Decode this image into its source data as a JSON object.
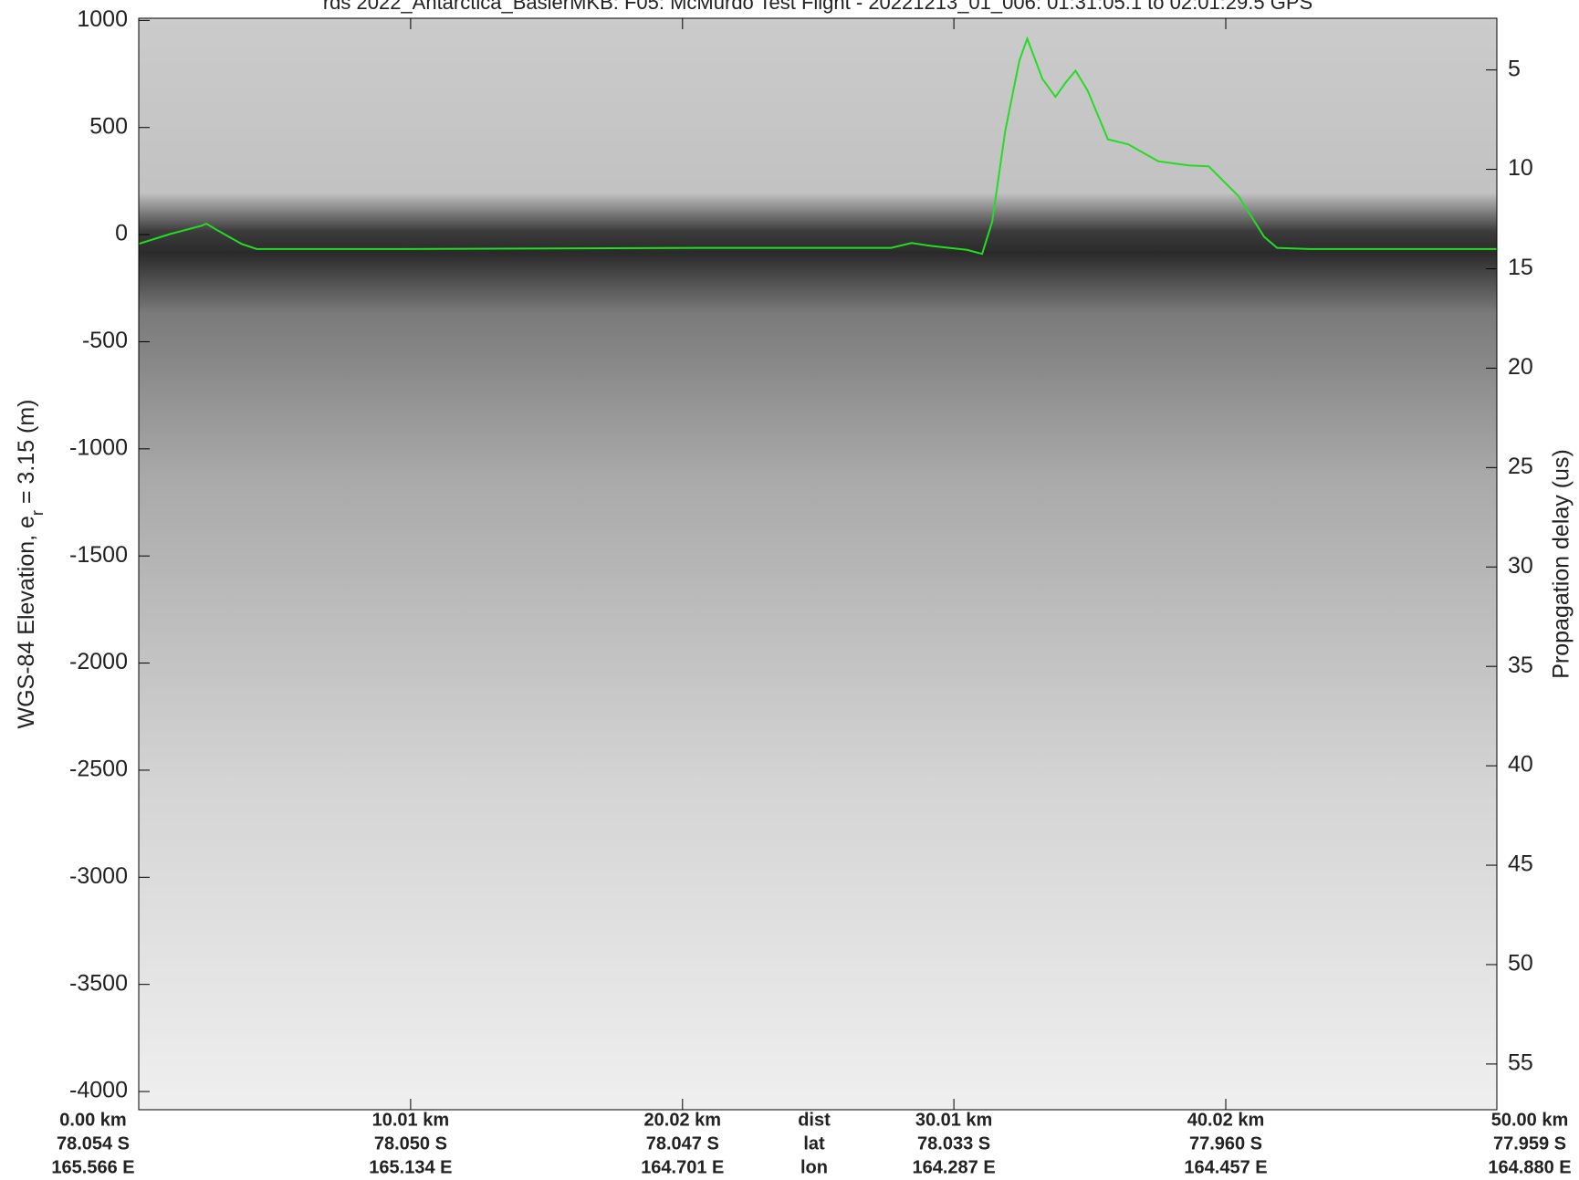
{
  "chart_data": {
    "type": "line",
    "title": "rds 2022_Antarctica_BaslerMKB: F05: McMurdo Test Flight - 20221213_01_006: 01:31:05.1 to 02:01:29.5 GPS",
    "ylabel": "WGS-84 Elevation, e",
    "ylabel_subscript": "r",
    "ylabel_suffix": " = 3.15 (m)",
    "y2label": "Propagation delay (us)",
    "xlim": [
      0,
      50
    ],
    "ylim": [
      -4085,
      1010
    ],
    "y2lim": [
      57.3,
      2.4
    ],
    "yticks": [
      1000,
      500,
      0,
      -500,
      -1000,
      -1500,
      -2000,
      -2500,
      -3000,
      -3500,
      -4000
    ],
    "y2ticks": [
      5,
      10,
      15,
      20,
      25,
      30,
      35,
      40,
      45,
      50,
      55
    ],
    "xticks": [
      {
        "value": 0,
        "label": "0.00 km"
      },
      {
        "value": 10.01,
        "label": "10.01 km"
      },
      {
        "value": 20.02,
        "label": "20.02 km"
      },
      {
        "value": 30.01,
        "label": "30.01 km"
      },
      {
        "value": 40.02,
        "label": "40.02 km"
      },
      {
        "value": 50,
        "label": "50.00 km"
      }
    ],
    "lat_labels": [
      "78.054 S",
      "78.050 S",
      "78.047 S",
      "78.033 S",
      "77.960 S",
      "77.959 S"
    ],
    "lon_labels": [
      "165.566 E",
      "165.134 E",
      "164.701 E",
      "164.287 E",
      "164.457 E",
      "164.880 E"
    ],
    "row_labels": [
      "dist",
      "lat",
      "lon"
    ],
    "series": [
      {
        "color": "#22dd22",
        "x": [
          0,
          1.19,
          2.3,
          2.49,
          2.86,
          3.78,
          4.34,
          9.72,
          20.85,
          27.7,
          28.45,
          29.19,
          30.49,
          31.05,
          31.42,
          31.9,
          32.42,
          32.71,
          33.27,
          33.75,
          34.12,
          34.49,
          34.94,
          35.68,
          36.42,
          37.54,
          38.65,
          39.39,
          40.5,
          41.43,
          41.91,
          43.1,
          50
        ],
        "values": [
          -43,
          4,
          41,
          51,
          23,
          -43,
          -67,
          -67,
          -62,
          -62,
          -39,
          -53,
          -71,
          -90,
          60,
          483,
          812,
          915,
          727,
          643,
          709,
          765,
          671,
          445,
          422,
          342,
          323,
          319,
          178,
          -10,
          -62,
          -67,
          -67
        ]
      }
    ]
  }
}
